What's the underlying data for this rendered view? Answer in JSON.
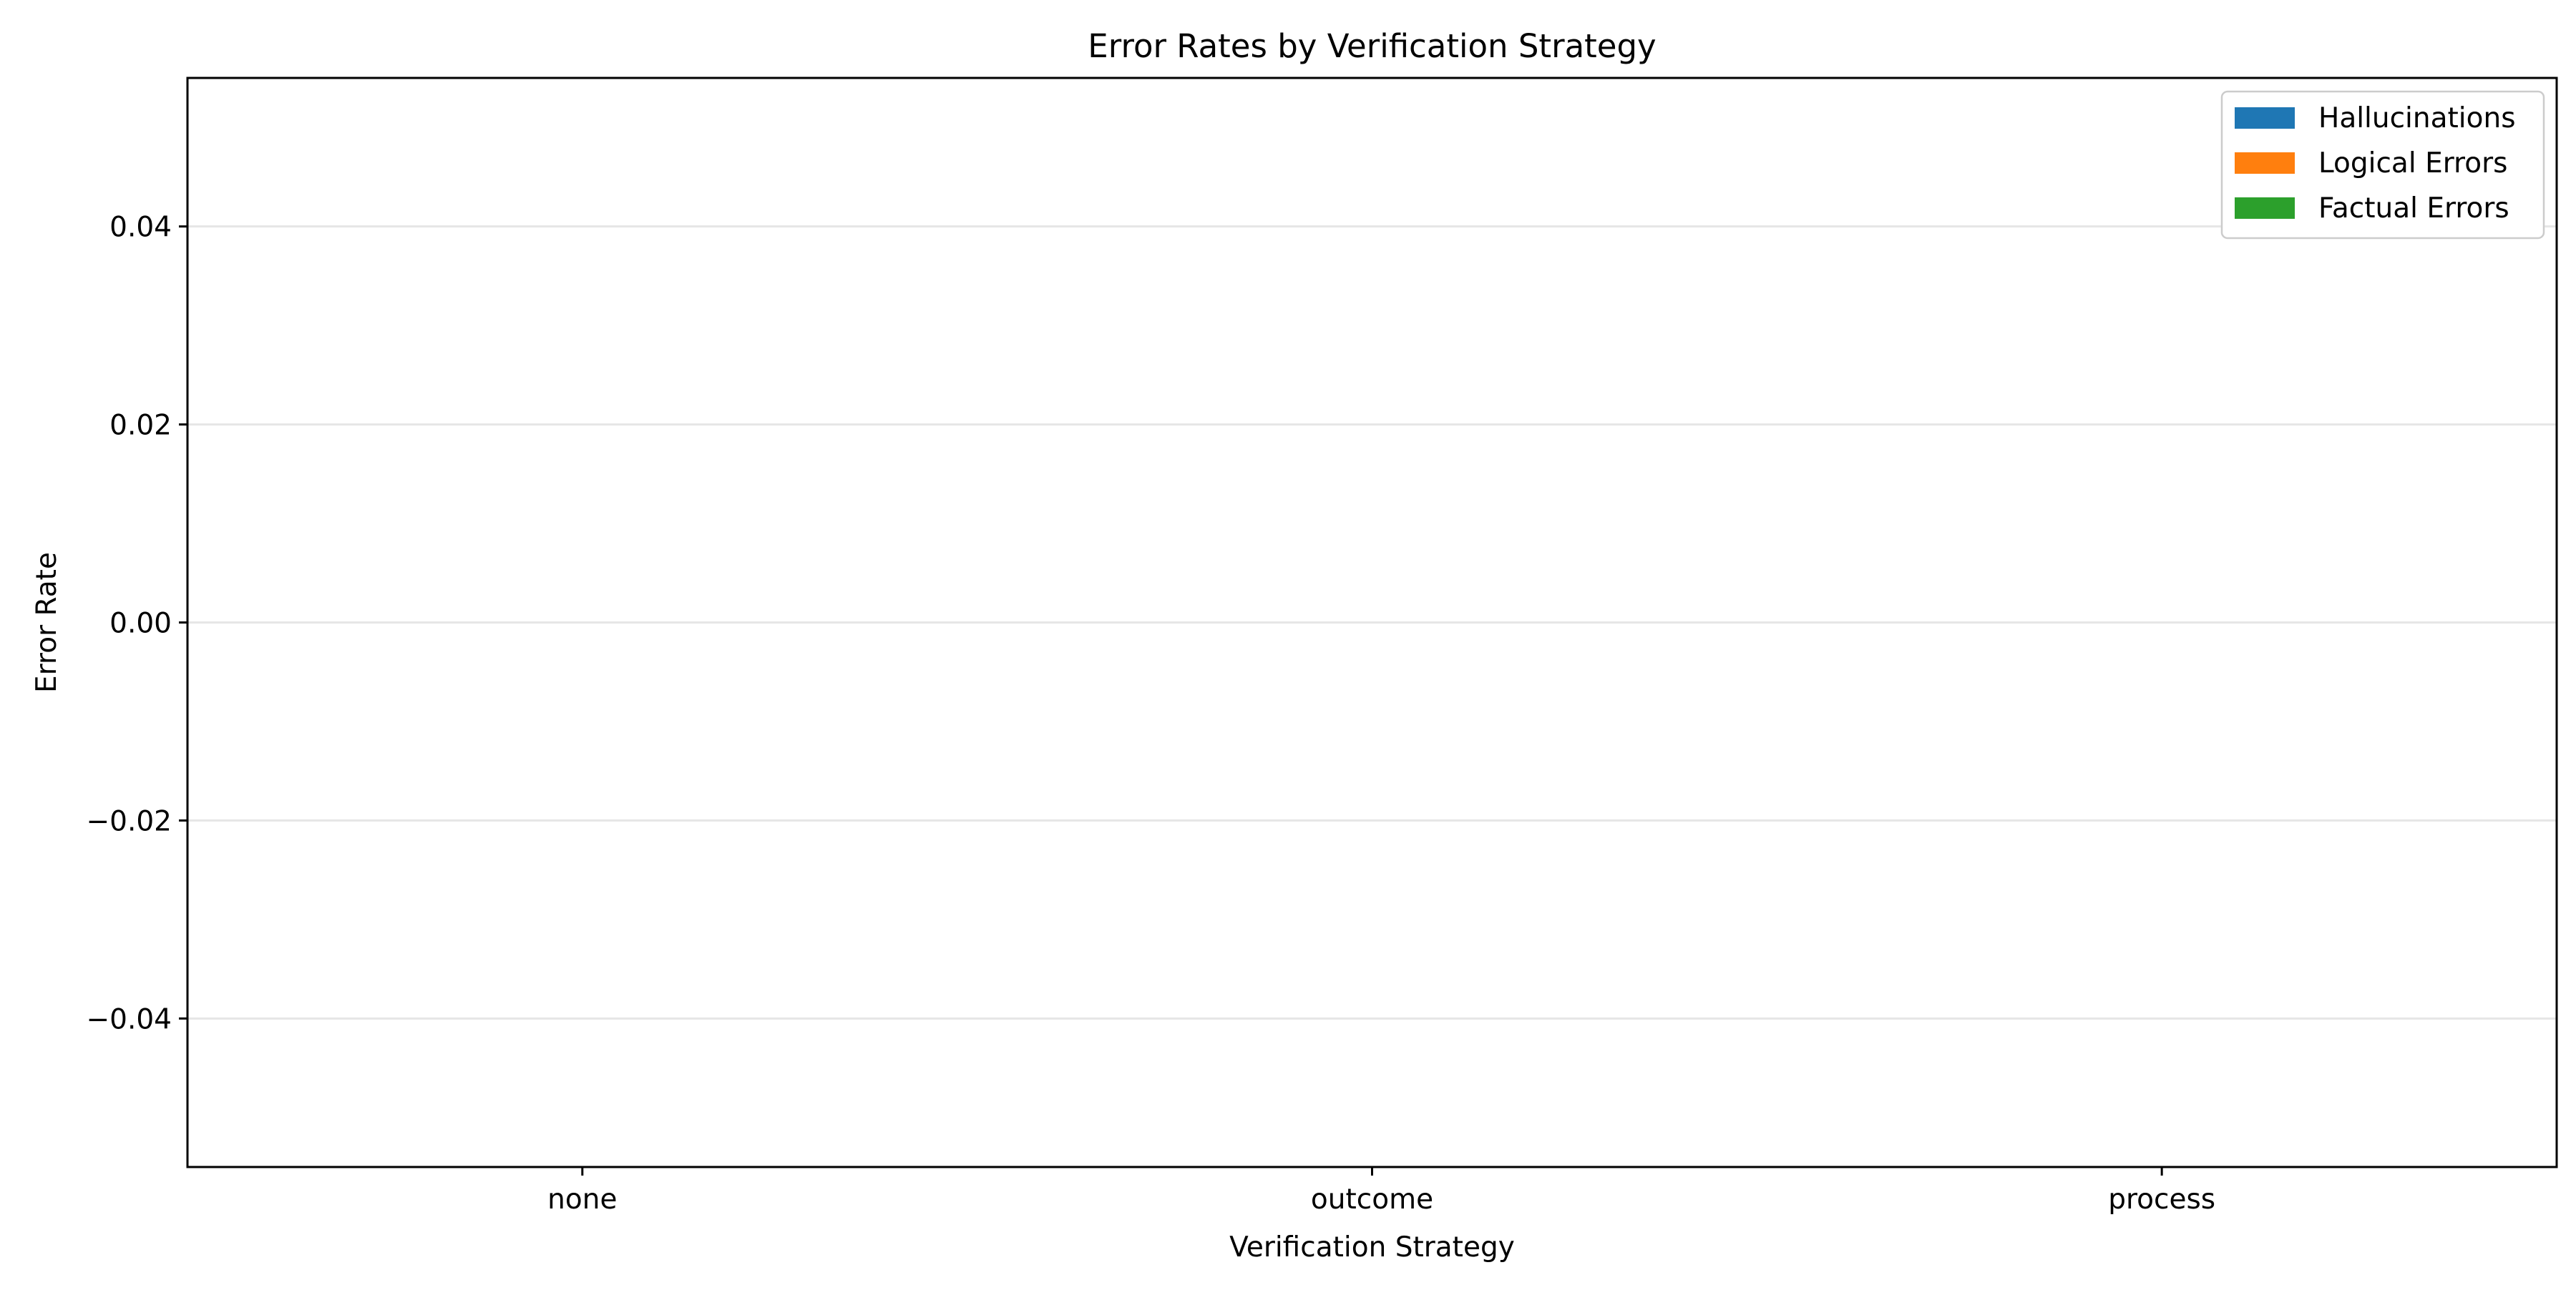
{
  "chart_data": {
    "type": "bar",
    "title": "Error Rates by Verification Strategy",
    "xlabel": "Verification Strategy",
    "ylabel": "Error Rate",
    "categories": [
      "none",
      "outcome",
      "process"
    ],
    "series": [
      {
        "name": "Hallucinations",
        "color": "#1f77b4",
        "values": [
          0,
          0,
          0
        ]
      },
      {
        "name": "Logical Errors",
        "color": "#ff7f0e",
        "values": [
          0,
          0,
          0
        ]
      },
      {
        "name": "Factual Errors",
        "color": "#2ca02c",
        "values": [
          0,
          0,
          0
        ]
      }
    ],
    "ylim": [
      -0.055,
      0.055
    ],
    "yticks": [
      -0.04,
      -0.02,
      0.0,
      0.02,
      0.04
    ],
    "ytick_labels": [
      "−0.04",
      "−0.02",
      "0.00",
      "0.02",
      "0.04"
    ],
    "grid": "y",
    "legend_position": "top-right"
  }
}
